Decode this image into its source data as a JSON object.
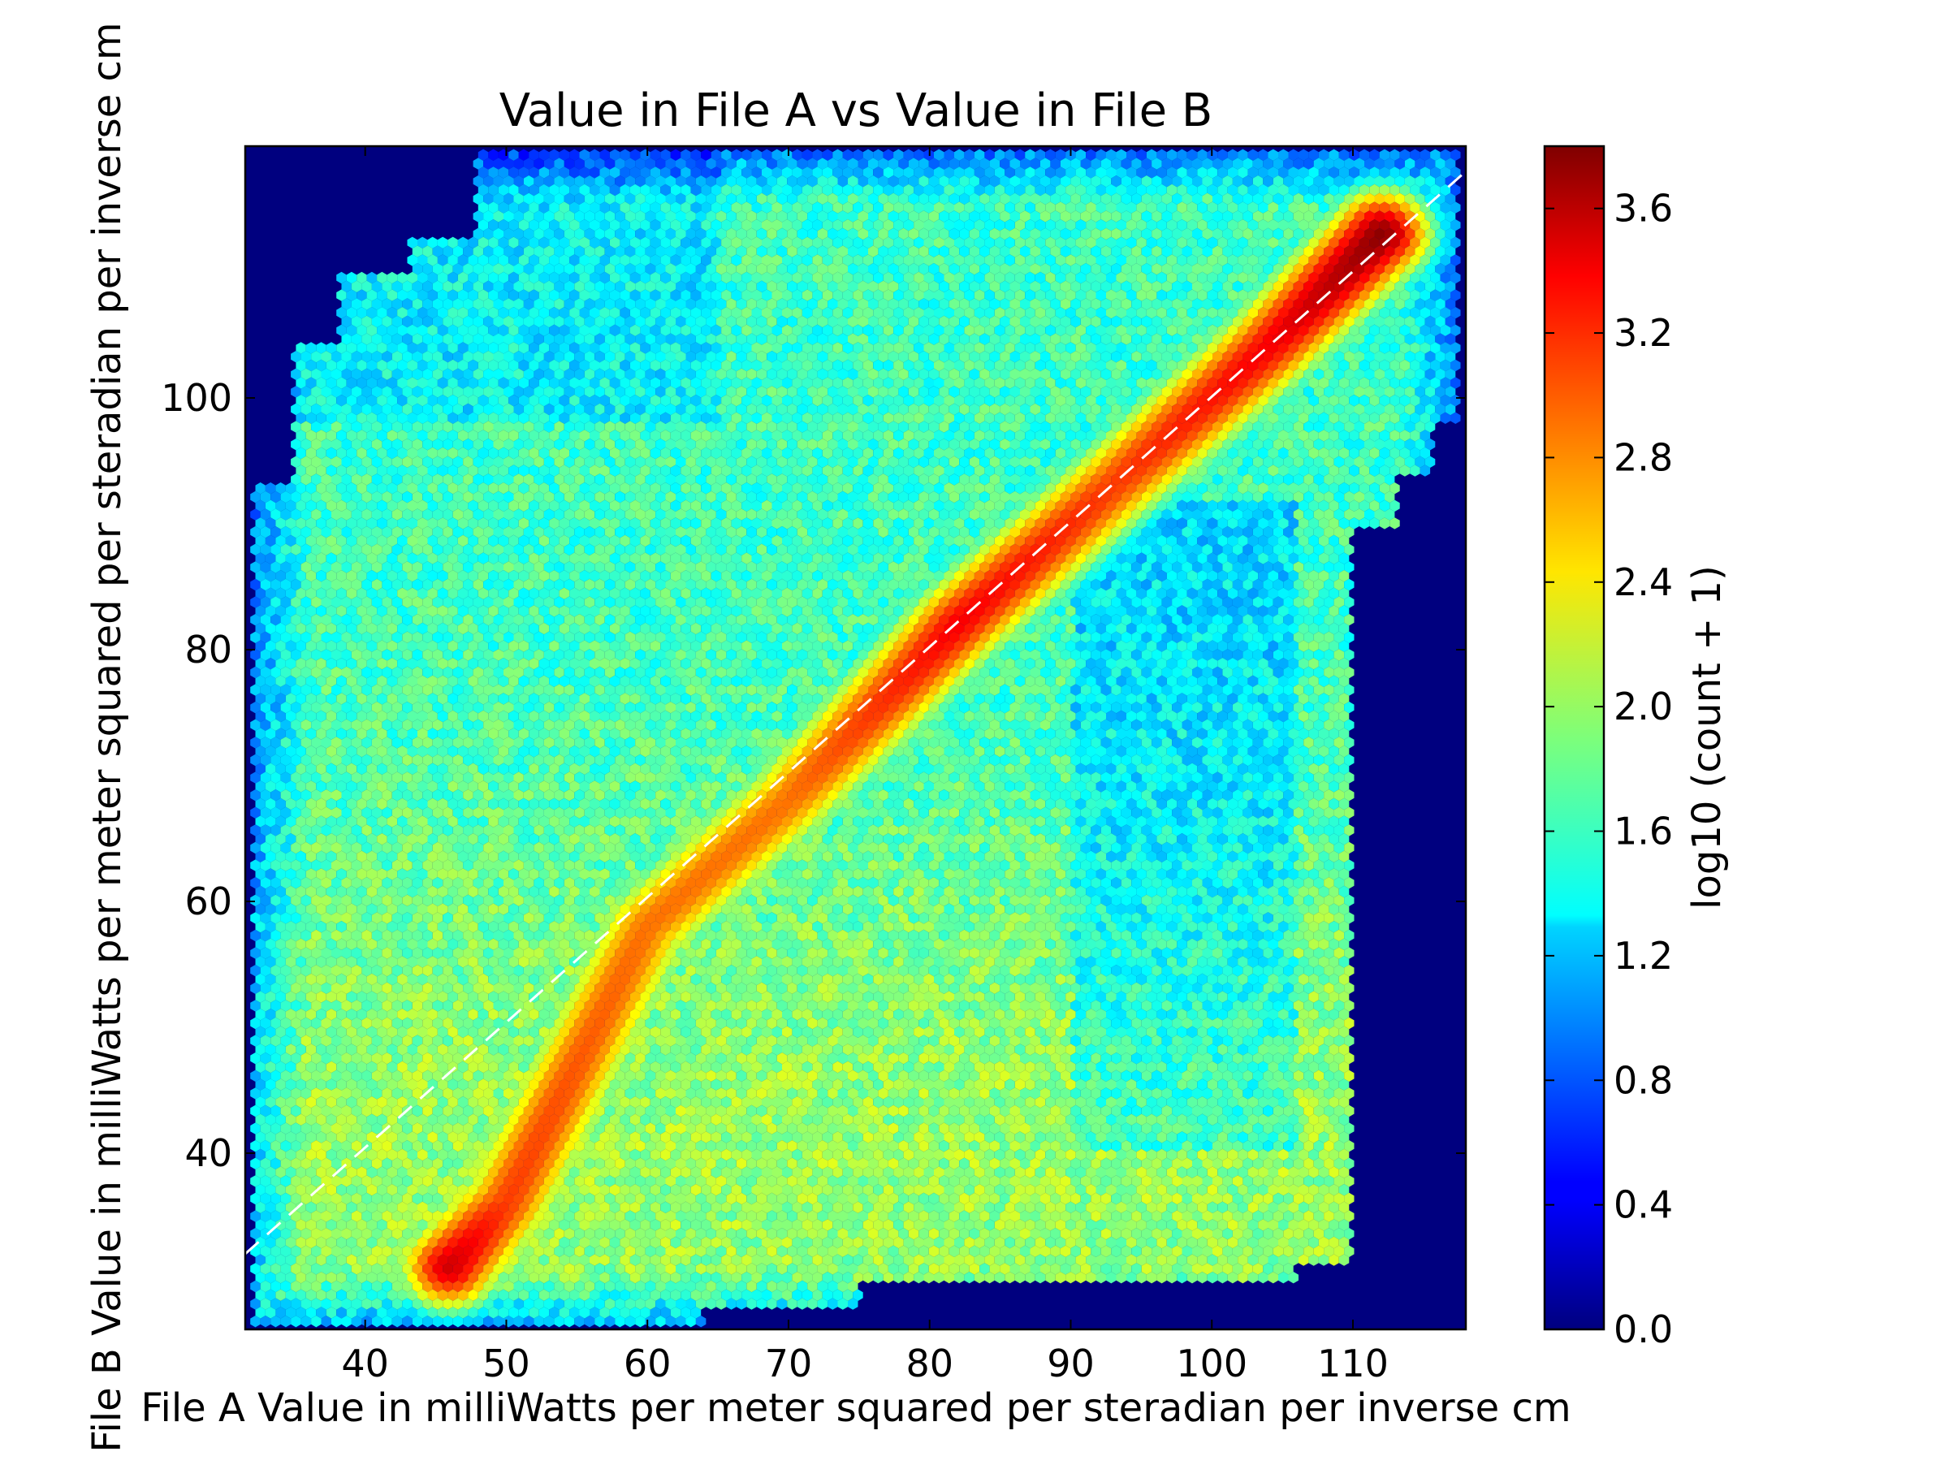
{
  "chart_data": {
    "type": "heatmap",
    "subtype": "hexbin",
    "title": "Value in File A vs Value in File B",
    "xlabel": "File A Value in milliWatts per meter squared per steradian per inverse cm",
    "ylabel": "File B Value in milliWatts per meter squared per steradian per inverse cm",
    "xlim": [
      31.5,
      118
    ],
    "ylim": [
      26,
      120
    ],
    "x_ticks": [
      40,
      50,
      60,
      70,
      80,
      90,
      100,
      110
    ],
    "y_ticks": [
      40,
      60,
      80,
      100
    ],
    "reference_line": {
      "style": "dashed",
      "color": "#ffffff",
      "points": [
        [
          31.5,
          32
        ],
        [
          118,
          118
        ]
      ]
    },
    "colorbar": {
      "label": "log10 (count + 1)",
      "colormap": "jet",
      "range": [
        0.0,
        3.8
      ],
      "ticks": [
        "0.0",
        "0.4",
        "0.8",
        "1.2",
        "1.6",
        "2.0",
        "2.4",
        "2.8",
        "3.2",
        "3.6"
      ]
    },
    "density_ridge": {
      "description": "highest counts along the diagonal",
      "points": [
        [
          46,
          31,
          3.5
        ],
        [
          50,
          36,
          3.1
        ],
        [
          60,
          58,
          2.9
        ],
        [
          70,
          68,
          2.9
        ],
        [
          82,
          82,
          3.35
        ],
        [
          93,
          93,
          3.1
        ],
        [
          104,
          104,
          3.35
        ],
        [
          112,
          113,
          3.75
        ]
      ]
    },
    "background_color": "#00007f"
  }
}
